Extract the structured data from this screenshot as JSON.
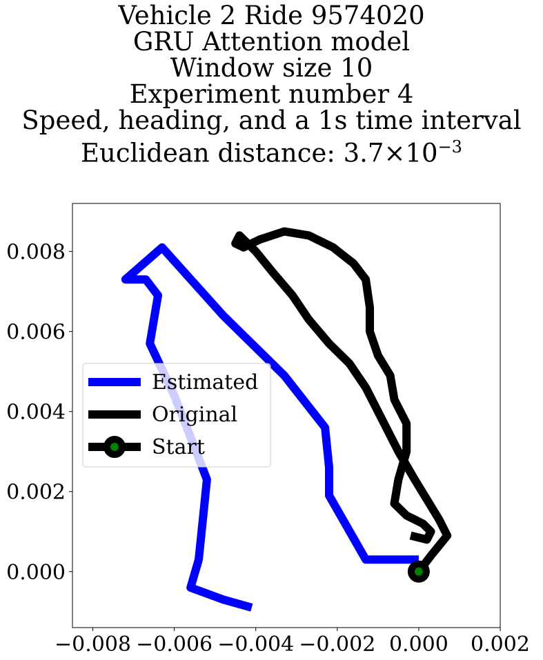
{
  "chart_data": {
    "type": "line",
    "title_lines": [
      "Vehicle 2 Ride 9574020",
      "GRU Attention model",
      "Window size 10",
      "Experiment number 4",
      "Speed, heading, and a 1s time interval"
    ],
    "title_metric_prefix": "Euclidean distance: 3.7",
    "title_metric_times": "×",
    "title_metric_base": "10",
    "title_metric_exp": "−3",
    "xlim": [
      -0.0085,
      0.002
    ],
    "ylim": [
      -0.0014,
      0.0092
    ],
    "x_ticks": [
      -0.008,
      -0.006,
      -0.004,
      -0.002,
      0.0,
      0.002
    ],
    "x_tick_labels": [
      "−0.008",
      "−0.006",
      "−0.004",
      "−0.002",
      "0.000",
      "0.002"
    ],
    "y_ticks": [
      0.0,
      0.002,
      0.004,
      0.006,
      0.008
    ],
    "y_tick_labels": [
      "0.000",
      "0.002",
      "0.004",
      "0.006",
      "0.008"
    ],
    "legend_position": "center-left",
    "grid": false,
    "series": [
      {
        "name": "Estimated",
        "color": "#0000ff",
        "points": [
          [
            0.0,
            0.0003
          ],
          [
            -0.0005,
            0.0003
          ],
          [
            -0.0013,
            0.0003
          ],
          [
            -0.0022,
            0.0019
          ],
          [
            -0.0022,
            0.0026
          ],
          [
            -0.0023,
            0.0036
          ],
          [
            -0.0033,
            0.0049
          ],
          [
            -0.0037,
            0.0053
          ],
          [
            -0.0048,
            0.0064
          ],
          [
            -0.0063,
            0.0081
          ],
          [
            -0.0072,
            0.0073
          ],
          [
            -0.0067,
            0.0073
          ],
          [
            -0.0064,
            0.0069
          ],
          [
            -0.0066,
            0.0057
          ],
          [
            -0.006,
            0.0044
          ],
          [
            -0.0055,
            0.0031
          ],
          [
            -0.0052,
            0.0023
          ],
          [
            -0.0053,
            0.0013
          ],
          [
            -0.0054,
            0.0003
          ],
          [
            -0.0056,
            -0.0004
          ],
          [
            -0.0048,
            -0.0007
          ],
          [
            -0.0041,
            -0.0009
          ]
        ]
      },
      {
        "name": "Original",
        "color": "#000000",
        "points": [
          [
            0.0,
            0.0
          ],
          [
            0.0003,
            0.0004
          ],
          [
            0.0007,
            0.0009
          ],
          [
            0.0005,
            0.0013
          ],
          [
            0.0002,
            0.0018
          ],
          [
            -0.0001,
            0.0023
          ],
          [
            -0.0005,
            0.003
          ],
          [
            -0.0009,
            0.0038
          ],
          [
            -0.0013,
            0.0046
          ],
          [
            -0.0017,
            0.0052
          ],
          [
            -0.0022,
            0.0057
          ],
          [
            -0.0027,
            0.0063
          ],
          [
            -0.0031,
            0.0069
          ],
          [
            -0.0036,
            0.0075
          ],
          [
            -0.004,
            0.008
          ],
          [
            -0.0044,
            0.0084
          ],
          [
            -0.0045,
            0.0082
          ],
          [
            -0.0043,
            0.0081
          ],
          [
            -0.0039,
            0.0083
          ],
          [
            -0.0033,
            0.0085
          ],
          [
            -0.0027,
            0.0084
          ],
          [
            -0.0021,
            0.0081
          ],
          [
            -0.0016,
            0.0077
          ],
          [
            -0.0013,
            0.0073
          ],
          [
            -0.0012,
            0.0066
          ],
          [
            -0.0012,
            0.006
          ],
          [
            -0.001,
            0.0054
          ],
          [
            -0.0007,
            0.0049
          ],
          [
            -0.0006,
            0.0043
          ],
          [
            -0.0003,
            0.0037
          ],
          [
            -0.0003,
            0.003
          ],
          [
            -0.0005,
            0.0023
          ],
          [
            -0.0006,
            0.0017
          ],
          [
            -0.0003,
            0.0014
          ],
          [
            0.0001,
            0.0012
          ],
          [
            0.0003,
            0.001
          ],
          [
            0.0002,
            0.0008
          ],
          [
            -0.0002,
            0.0009
          ]
        ]
      }
    ],
    "start": {
      "name": "Start",
      "point": [
        0.0,
        0.0
      ],
      "marker_fill": "#008000",
      "marker_edge": "#000000"
    }
  }
}
